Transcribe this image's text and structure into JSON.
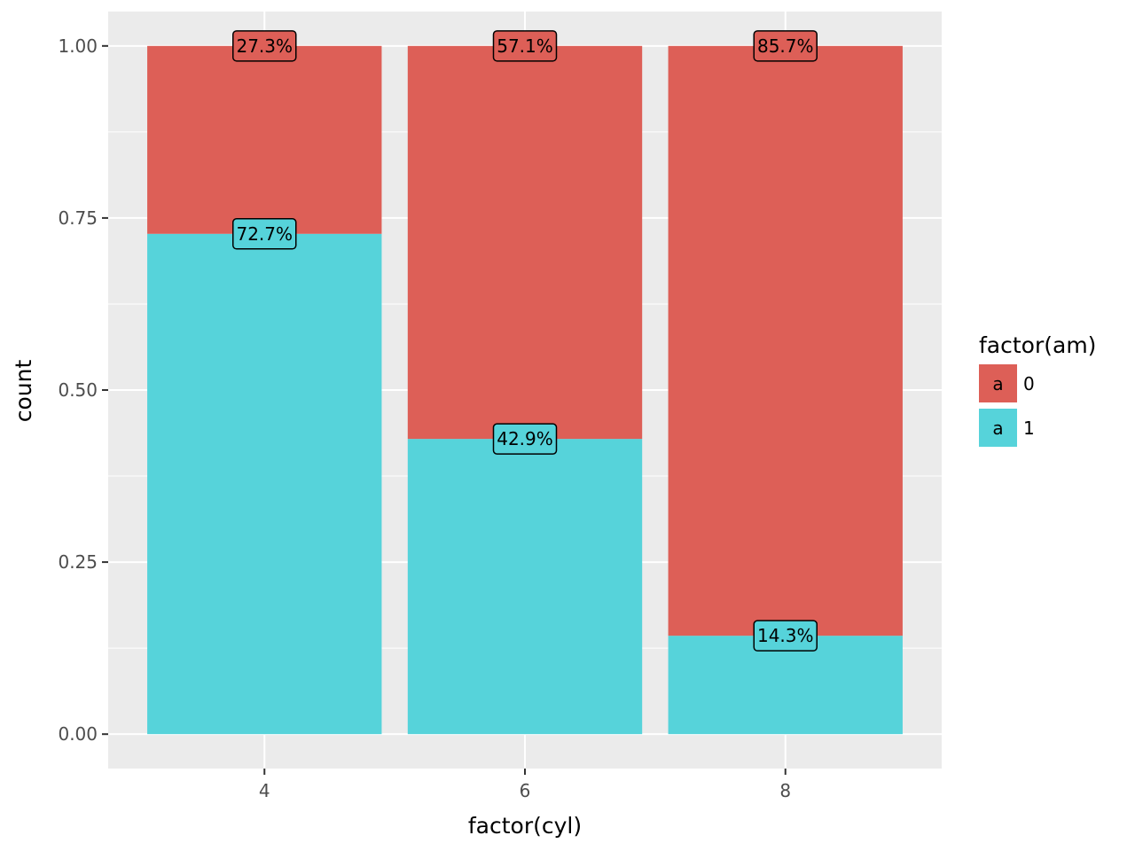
{
  "chart_data": {
    "type": "bar",
    "stacked": true,
    "position": "fill",
    "categories": [
      "4",
      "6",
      "8"
    ],
    "series": [
      {
        "name": "0",
        "values": [
          0.273,
          0.571,
          0.857
        ],
        "labels": [
          "27.3%",
          "57.1%",
          "85.7%"
        ],
        "color": "#DD5F57"
      },
      {
        "name": "1",
        "values": [
          0.727,
          0.429,
          0.143
        ],
        "labels": [
          "72.7%",
          "42.9%",
          "14.3%"
        ],
        "color": "#56D3DA"
      }
    ],
    "stack_order_bottom_to_top": [
      "1",
      "0"
    ],
    "xlabel": "factor(cyl)",
    "ylabel": "count",
    "ylim": [
      -0.05,
      1.05
    ],
    "yticks": [
      0.0,
      0.25,
      0.5,
      0.75,
      1.0
    ],
    "ytick_labels": [
      "0.00",
      "0.25",
      "0.50",
      "0.75",
      "1.00"
    ],
    "grid": true,
    "panel_background": "#EBEBEB",
    "legend": {
      "title": "factor(am)",
      "placement": "right",
      "key_glyph": "a",
      "entries": [
        "0",
        "1"
      ]
    }
  }
}
